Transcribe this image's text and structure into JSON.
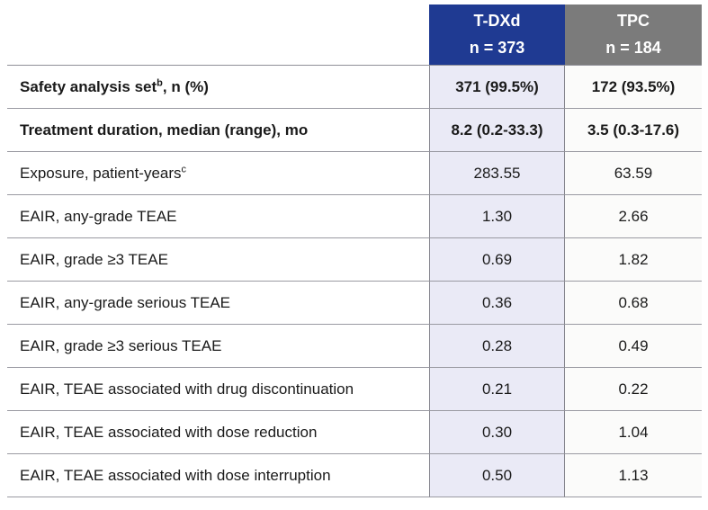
{
  "table": {
    "columns": [
      {
        "key": "tdxd",
        "label": "T-DXd",
        "sublabel": "n = 373",
        "header_bg": "#1f3a92",
        "body_bg": "#eaeaf6"
      },
      {
        "key": "tpc",
        "label": "TPC",
        "sublabel": "n = 184",
        "header_bg": "#7b7b7b",
        "body_bg": "#fbfbfa"
      }
    ],
    "rows": [
      {
        "label_pre": "Safety analysis set",
        "sup": "b",
        "label_post": ", n (%)",
        "bold": true,
        "tdxd": "371 (99.5%)",
        "tpc": "172 (93.5%)"
      },
      {
        "label_pre": "Treatment duration, median (range), mo",
        "sup": "",
        "label_post": "",
        "bold": true,
        "tdxd": "8.2 (0.2-33.3)",
        "tpc": "3.5 (0.3-17.6)"
      },
      {
        "label_pre": "Exposure, patient-years",
        "sup": "c",
        "label_post": "",
        "bold": false,
        "tdxd": "283.55",
        "tpc": "63.59"
      },
      {
        "label_pre": "EAIR, any-grade TEAE",
        "sup": "",
        "label_post": "",
        "bold": false,
        "tdxd": "1.30",
        "tpc": "2.66"
      },
      {
        "label_pre": "EAIR, grade ≥3 TEAE",
        "sup": "",
        "label_post": "",
        "bold": false,
        "tdxd": "0.69",
        "tpc": "1.82"
      },
      {
        "label_pre": "EAIR, any-grade serious TEAE",
        "sup": "",
        "label_post": "",
        "bold": false,
        "tdxd": "0.36",
        "tpc": "0.68"
      },
      {
        "label_pre": "EAIR, grade ≥3 serious TEAE",
        "sup": "",
        "label_post": "",
        "bold": false,
        "tdxd": "0.28",
        "tpc": "0.49"
      },
      {
        "label_pre": "EAIR, TEAE associated with drug discontinuation",
        "sup": "",
        "label_post": "",
        "bold": false,
        "tdxd": "0.21",
        "tpc": "0.22"
      },
      {
        "label_pre": "EAIR, TEAE associated with dose reduction",
        "sup": "",
        "label_post": "",
        "bold": false,
        "tdxd": "0.30",
        "tpc": "1.04"
      },
      {
        "label_pre": "EAIR, TEAE associated with dose interruption",
        "sup": "",
        "label_post": "",
        "bold": false,
        "tdxd": "0.50",
        "tpc": "1.13"
      }
    ]
  },
  "colors": {
    "tdxd_header": "#1f3a92",
    "tpc_header": "#7b7b7b",
    "tdxd_body": "#eaeaf6",
    "tpc_body": "#fbfbfa",
    "grid_line": "#9a9aa2"
  }
}
